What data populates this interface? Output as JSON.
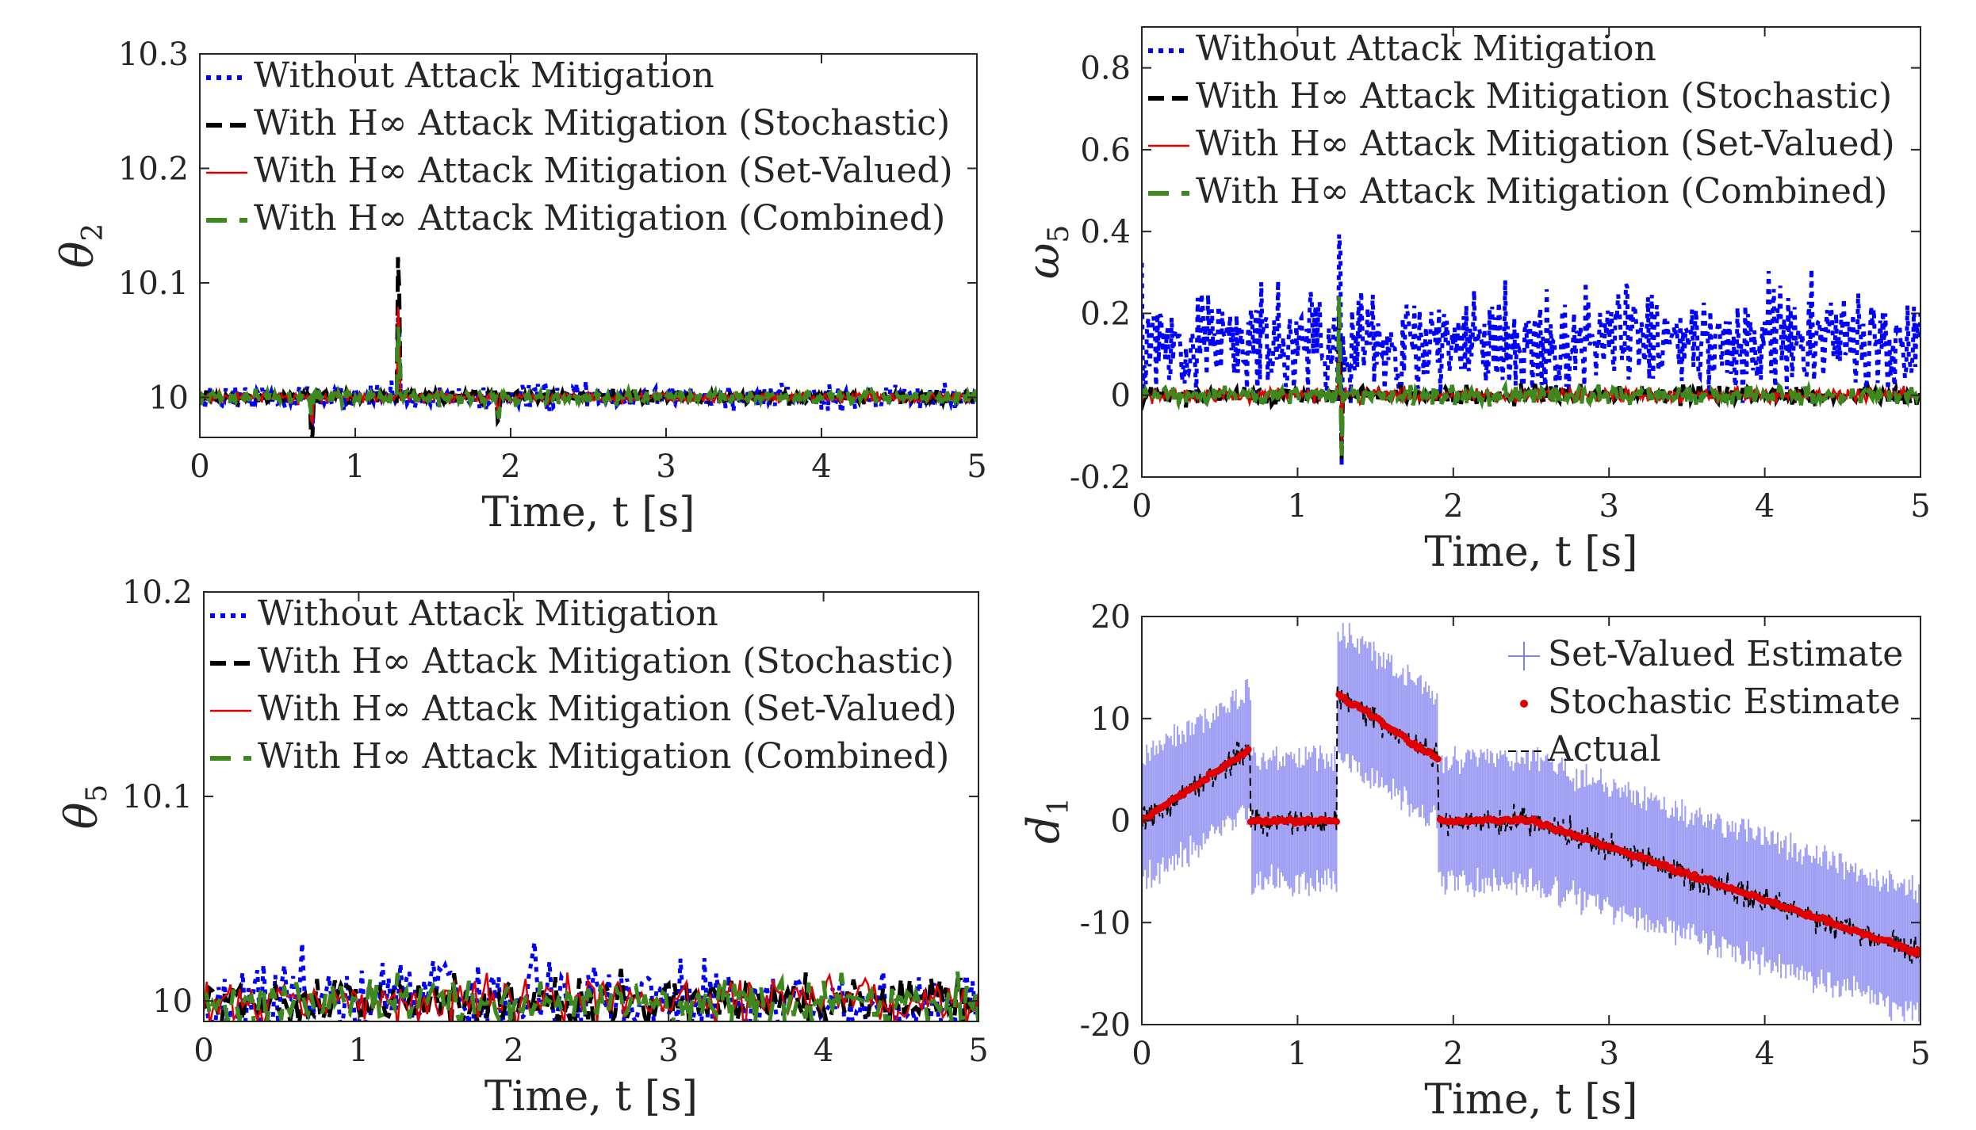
{
  "chart_data": [
    {
      "type": "line",
      "title": "",
      "xlabel": "Time, t [s]",
      "ylabel": "θ",
      "ylabel_sub": "2",
      "xlim": [
        0,
        5
      ],
      "ylim": [
        9.965,
        10.3
      ],
      "x_ticks": [
        0,
        1,
        2,
        3,
        4,
        5
      ],
      "y_ticks": [
        10,
        10.1,
        10.2,
        10.3
      ],
      "y_tick_labels": [
        "10",
        "10.1",
        "10.2",
        "10.3"
      ],
      "grid": false,
      "legend_position": "top-left",
      "signal": {
        "baseline": 10,
        "noise": 0.004,
        "points": 600,
        "spikes": [
          {
            "x": 0.72,
            "v": -0.04
          },
          {
            "x": 1.28,
            "v": 0.12
          },
          {
            "x": 1.92,
            "v": -0.03
          }
        ]
      },
      "series": [
        {
          "name": "Without Attack Mitigation",
          "color": "#0000ff",
          "dash": "dot",
          "noise_scale": 1.8,
          "spike_scale": 0.6
        },
        {
          "name": "With H∞ Attack Mitigation (Stochastic)",
          "color": "#000000",
          "dash": "dash",
          "noise_scale": 1.0,
          "spike_scale": 1.0
        },
        {
          "name": "With H∞ Attack Mitigation (Set-Valued)",
          "color": "#e00000",
          "dash": "solid",
          "noise_scale": 0.8,
          "spike_scale": 0.7
        },
        {
          "name": "With H∞ Attack Mitigation (Combined)",
          "color": "#3c8a1e",
          "dash": "longdash",
          "noise_scale": 1.0,
          "spike_scale": 0.5
        }
      ]
    },
    {
      "type": "line",
      "title": "",
      "xlabel": "Time, t [s]",
      "ylabel": "ω",
      "ylabel_sub": "5",
      "xlim": [
        0,
        5
      ],
      "ylim": [
        -0.2,
        0.9
      ],
      "x_ticks": [
        0,
        1,
        2,
        3,
        4,
        5
      ],
      "y_ticks": [
        -0.2,
        0,
        0.2,
        0.4,
        0.6,
        0.8
      ],
      "y_tick_labels": [
        "-0.2",
        "0",
        "0.2",
        "0.4",
        "0.6",
        "0.8"
      ],
      "grid": false,
      "legend_position": "top-left",
      "signal": {
        "baseline": 0,
        "noise": 0.015,
        "points": 600,
        "spikes": [
          {
            "x": 1.27,
            "v": 0.28
          },
          {
            "x": 1.28,
            "v": -0.2
          }
        ]
      },
      "series": [
        {
          "name": "Without Attack Mitigation",
          "color": "#0000ff",
          "dash": "dot",
          "noise_scale": 4.0,
          "spike_scale": 1.6,
          "offset": 0.13
        },
        {
          "name": "With H∞ Attack Mitigation (Stochastic)",
          "color": "#000000",
          "dash": "dash",
          "noise_scale": 1.0,
          "spike_scale": 1.0
        },
        {
          "name": "With H∞ Attack Mitigation (Set-Valued)",
          "color": "#e00000",
          "dash": "solid",
          "noise_scale": 0.8,
          "spike_scale": 0.6
        },
        {
          "name": "With H∞ Attack Mitigation (Combined)",
          "color": "#3c8a1e",
          "dash": "longdash",
          "noise_scale": 1.0,
          "spike_scale": 0.9
        }
      ]
    },
    {
      "type": "line",
      "title": "",
      "xlabel": "Time, t [s]",
      "ylabel": "θ",
      "ylabel_sub": "5",
      "xlim": [
        0,
        5
      ],
      "ylim": [
        9.99,
        10.2
      ],
      "x_ticks": [
        0,
        1,
        2,
        3,
        4,
        5
      ],
      "y_ticks": [
        10,
        10.1,
        10.2
      ],
      "y_tick_labels": [
        "10",
        "10.1",
        "10.2"
      ],
      "grid": false,
      "legend_position": "top-left",
      "signal": {
        "baseline": 10,
        "noise": 0.006,
        "points": 260,
        "spikes": []
      },
      "series": [
        {
          "name": "Without Attack Mitigation",
          "color": "#0000ff",
          "dash": "dot",
          "noise_scale": 2.4,
          "spike_scale": 0
        },
        {
          "name": "With H∞ Attack Mitigation (Stochastic)",
          "color": "#000000",
          "dash": "dash",
          "noise_scale": 1.5,
          "spike_scale": 0
        },
        {
          "name": "With H∞ Attack Mitigation (Set-Valued)",
          "color": "#e00000",
          "dash": "solid",
          "noise_scale": 1.4,
          "spike_scale": 0
        },
        {
          "name": "With H∞ Attack Mitigation (Combined)",
          "color": "#3c8a1e",
          "dash": "longdash",
          "noise_scale": 1.3,
          "spike_scale": 0
        }
      ]
    },
    {
      "type": "line",
      "title": "",
      "xlabel": "Time, t [s]",
      "ylabel": "d",
      "ylabel_sub": "1",
      "xlim": [
        0,
        5
      ],
      "ylim": [
        -20,
        20
      ],
      "x_ticks": [
        0,
        1,
        2,
        3,
        4,
        5
      ],
      "y_ticks": [
        -20,
        -10,
        0,
        10,
        20
      ],
      "y_tick_labels": [
        "-20",
        "-10",
        "0",
        "10",
        "20"
      ],
      "grid": false,
      "legend_position": "top-right",
      "actual_segments": [
        {
          "x": [
            0,
            0.7
          ],
          "y": [
            0,
            7
          ]
        },
        {
          "x": [
            0.7,
            1.25
          ],
          "y": [
            0,
            0
          ]
        },
        {
          "x": [
            1.25,
            1.9
          ],
          "y": [
            12.5,
            6
          ]
        },
        {
          "x": [
            1.9,
            2.5
          ],
          "y": [
            0,
            0
          ]
        },
        {
          "x": [
            2.5,
            5
          ],
          "y": [
            0,
            -13
          ]
        }
      ],
      "band_halfwidth": 6,
      "series": [
        {
          "name": "Set-Valued Estimate",
          "color": "#8080f0",
          "marker": "errorbar"
        },
        {
          "name": "Stochastic Estimate",
          "color": "#e00000",
          "marker": "dot"
        },
        {
          "name": "Actual",
          "color": "#000000",
          "dash": "dash"
        }
      ]
    }
  ]
}
